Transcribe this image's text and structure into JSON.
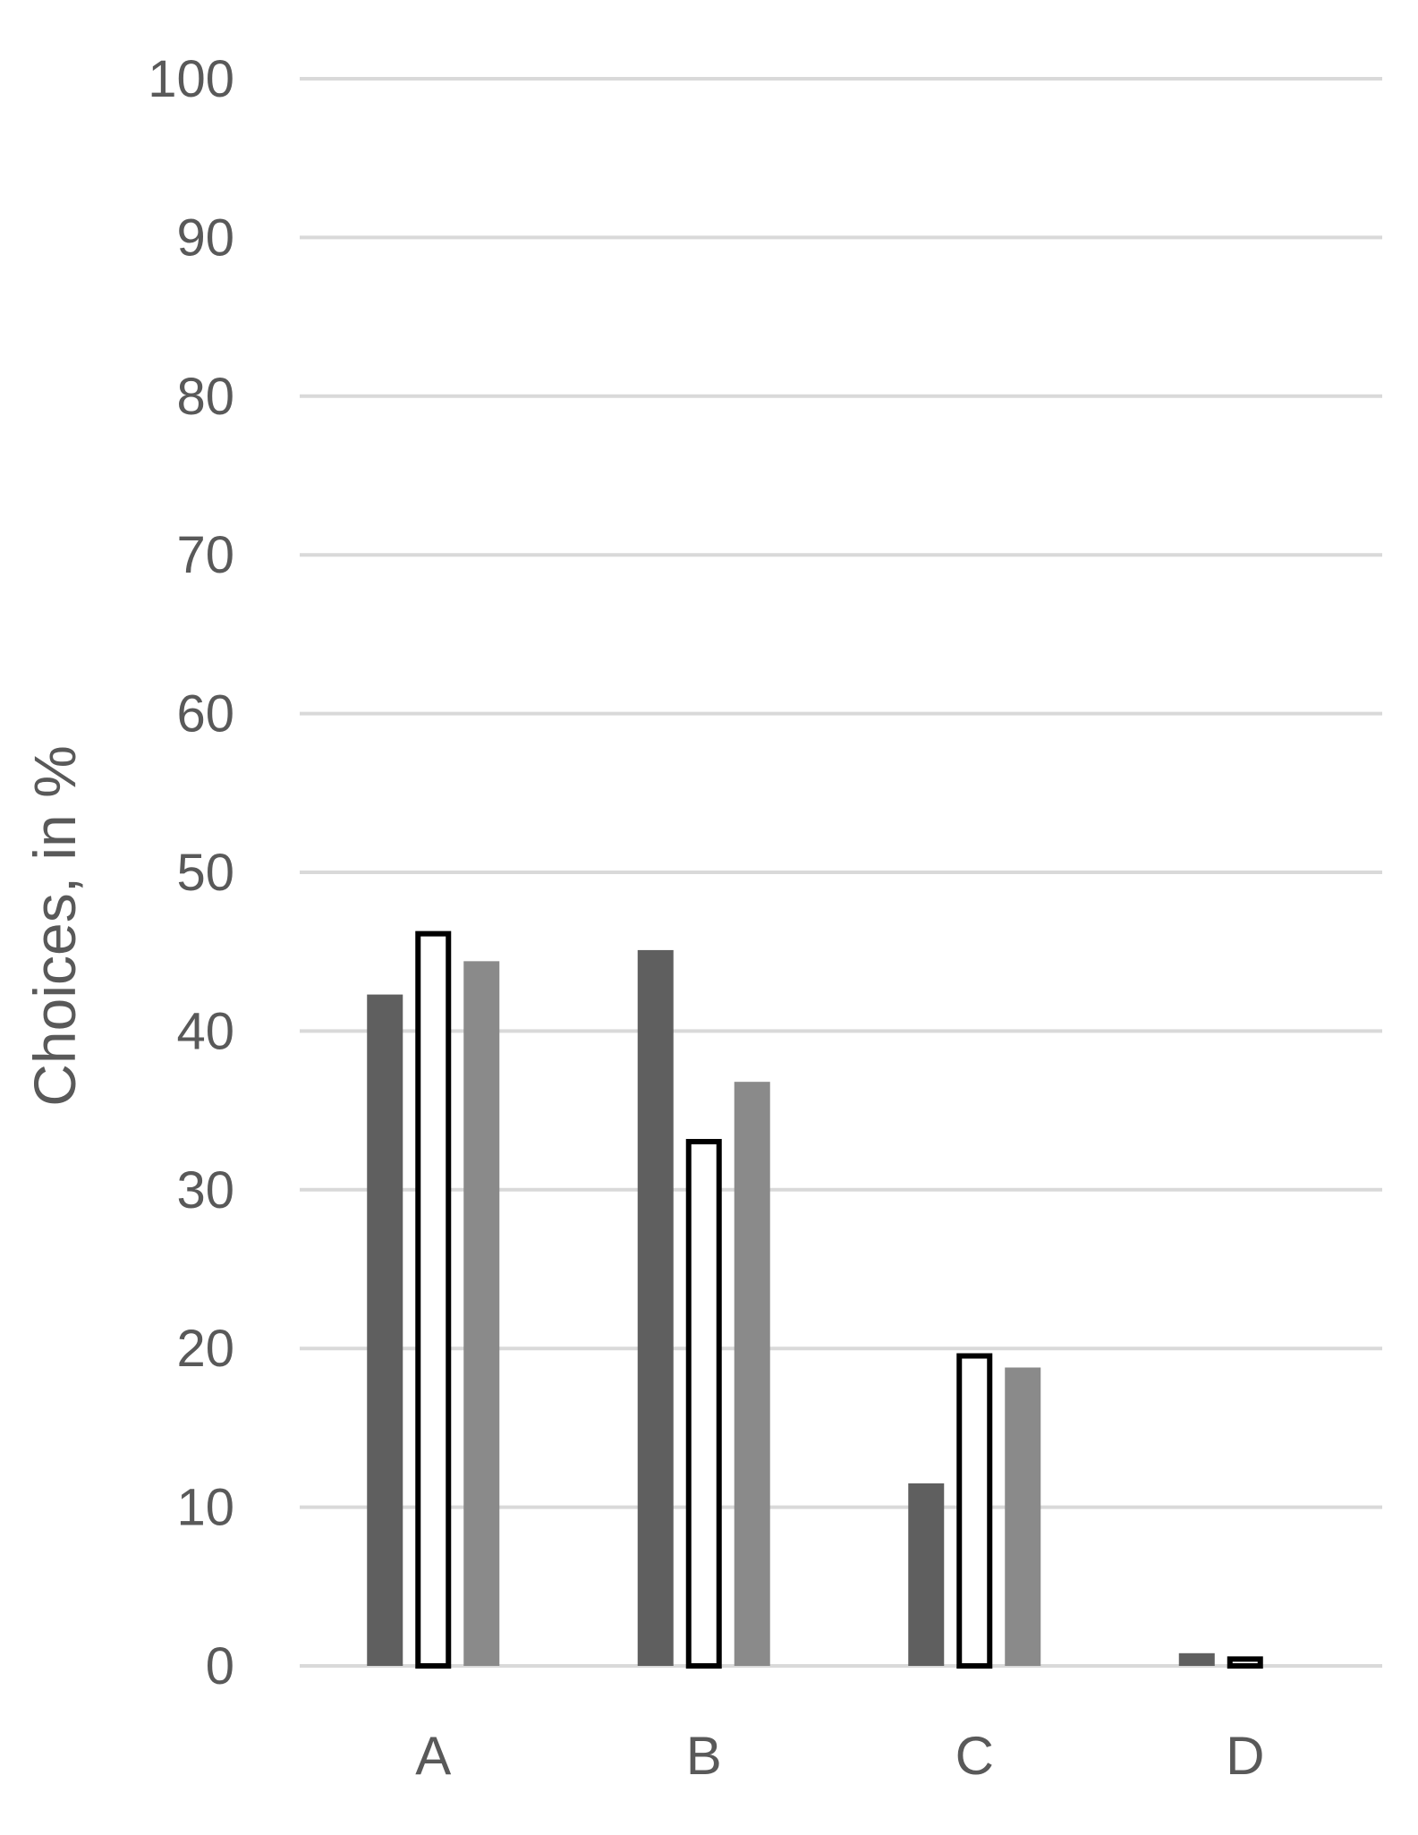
{
  "chart_data": {
    "type": "bar",
    "categories": [
      "A",
      "B",
      "C",
      "D"
    ],
    "series": [
      {
        "values": [
          42.3,
          45.1,
          11.5,
          0.8
        ]
      },
      {
        "values": [
          46.3,
          33.2,
          19.7,
          0.6
        ]
      },
      {
        "values": [
          44.4,
          36.8,
          18.8,
          0.0
        ]
      }
    ],
    "ylabel": "Choices, in %",
    "ylim": [
      0,
      100
    ],
    "yticks": [
      0,
      10,
      20,
      30,
      40,
      50,
      60,
      70,
      80,
      90,
      100
    ],
    "grid": true,
    "legend": "none",
    "colors": {
      "series_fills": [
        "#5f5f5f",
        "#ffffff",
        "#8a8a8a"
      ],
      "series_strokes": [
        "none",
        "#000000",
        "none"
      ],
      "gridline": "#d9d9d9",
      "text": "#595959"
    }
  }
}
